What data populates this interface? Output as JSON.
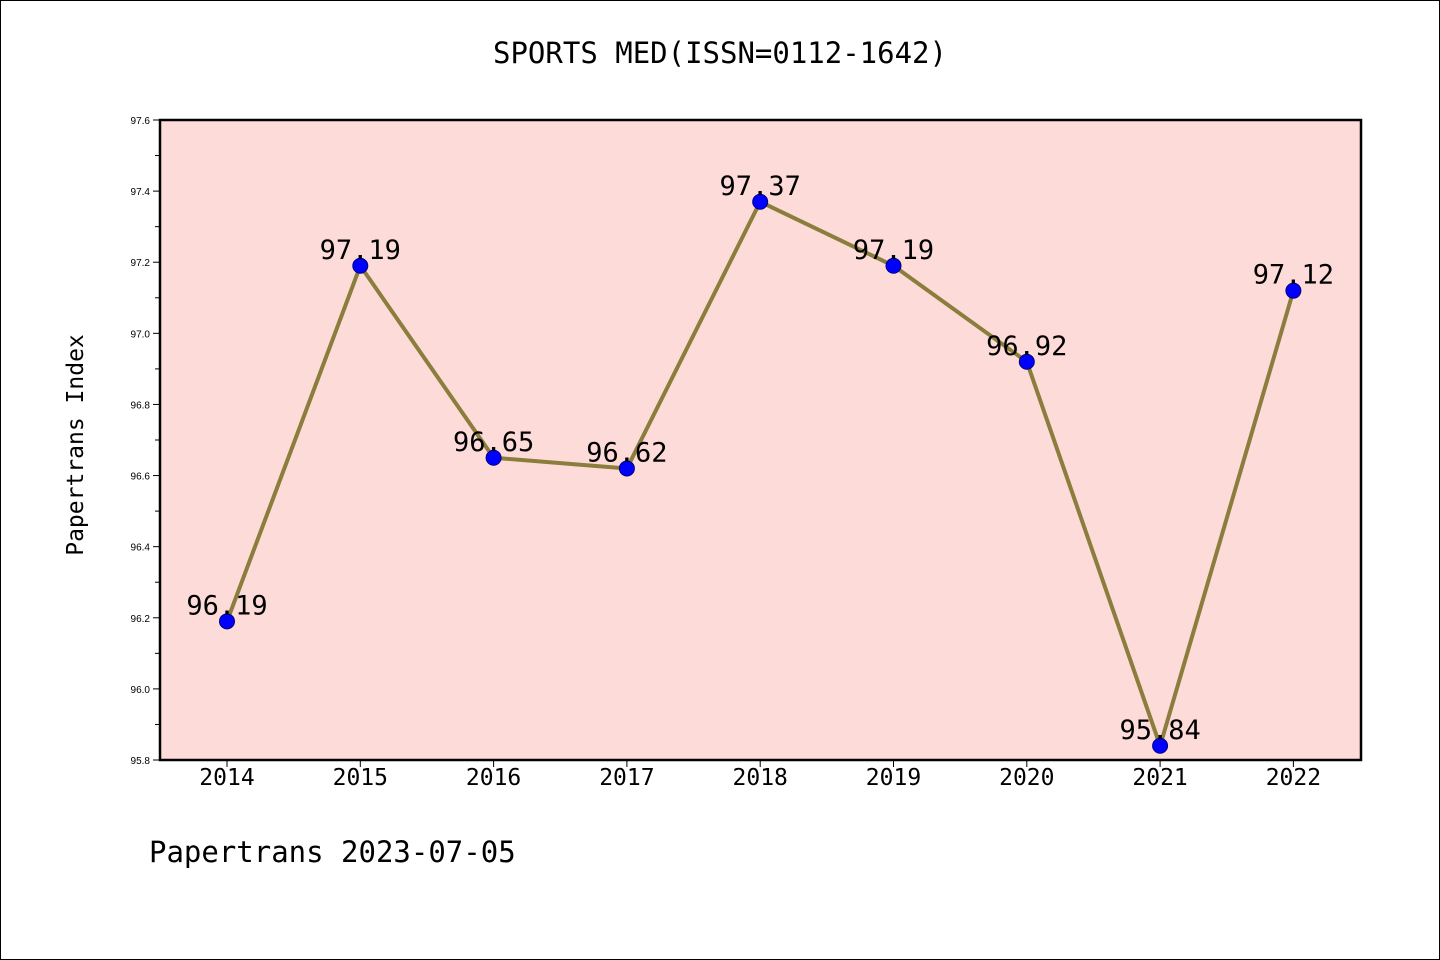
{
  "chart_data": {
    "type": "line",
    "title": "SPORTS MED(ISSN=0112-1642)",
    "xlabel": "",
    "ylabel": "Papertrans Index",
    "categories": [
      "2014",
      "2015",
      "2016",
      "2017",
      "2018",
      "2019",
      "2020",
      "2021",
      "2022"
    ],
    "values": [
      96.19,
      97.19,
      96.65,
      96.62,
      97.37,
      97.19,
      96.92,
      95.84,
      97.12
    ],
    "data_labels": [
      "96.19",
      "97.19",
      "96.65",
      "96.62",
      "97.37",
      "97.19",
      "96.92",
      "95.84",
      "97.12"
    ],
    "ylim": [
      95.8,
      97.6
    ],
    "y_ticks": [
      "95.8",
      "96.0",
      "96.2",
      "96.4",
      "96.6",
      "96.8",
      "97.0",
      "97.2",
      "97.4",
      "97.6"
    ],
    "y_tick_values": [
      95.8,
      96.0,
      96.2,
      96.4,
      96.6,
      96.8,
      97.0,
      97.2,
      97.4,
      97.6
    ],
    "grid": false,
    "legend": "none",
    "colors": {
      "plot_background": "#fddbd9",
      "line": "#8b7d3c",
      "marker": "#0000ff",
      "axes": "#000000"
    }
  },
  "footer": {
    "text": "Papertrans 2023-07-05"
  }
}
